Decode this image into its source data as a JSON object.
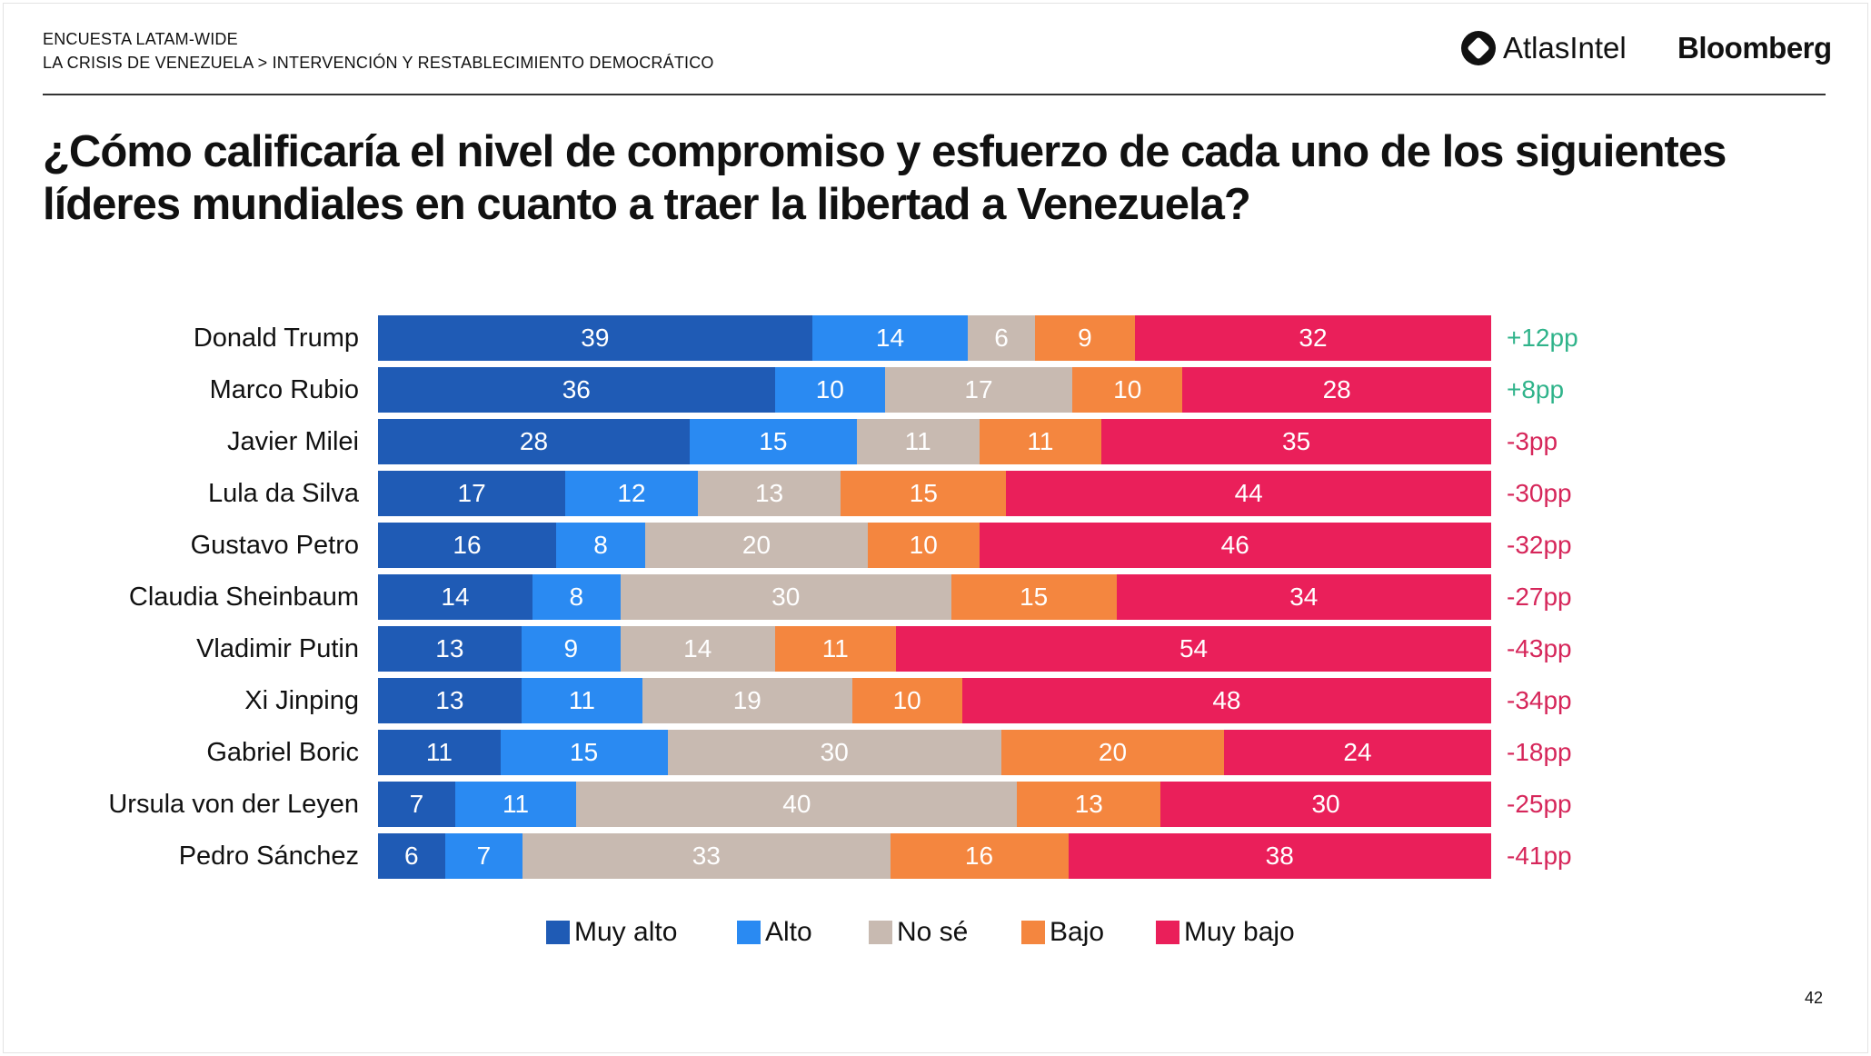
{
  "header": {
    "survey": "ENCUESTA LATAM-WIDE",
    "breadcrumb": "LA CRISIS DE VENEZUELA > INTERVENCIÓN Y RESTABLECIMIENTO DEMOCRÁTICO",
    "logos": [
      "AtlasIntel",
      "Bloomberg"
    ]
  },
  "page_number": "42",
  "chart_data": {
    "type": "bar",
    "orientation": "horizontal-stacked-100",
    "title": "¿Cómo calificaría el nivel de compromiso y esfuerzo de cada uno de los siguientes líderes mundiales en cuanto a traer la libertad a Venezuela?",
    "categories": [
      "Donald Trump",
      "Marco Rubio",
      "Javier Milei",
      "Lula da Silva",
      "Gustavo Petro",
      "Claudia Sheinbaum",
      "Vladimir Putin",
      "Xi Jinping",
      "Gabriel Boric",
      "Ursula von der Leyen",
      "Pedro Sánchez"
    ],
    "series": [
      {
        "name": "Muy alto",
        "color": "#1f5bb5",
        "values": [
          39,
          36,
          28,
          17,
          16,
          14,
          13,
          13,
          11,
          7,
          6
        ]
      },
      {
        "name": "Alto",
        "color": "#2a8af2",
        "values": [
          14,
          10,
          15,
          12,
          8,
          8,
          9,
          11,
          15,
          11,
          7
        ]
      },
      {
        "name": "No sé",
        "color": "#c8bab1",
        "values": [
          6,
          17,
          11,
          13,
          20,
          30,
          14,
          19,
          30,
          40,
          33
        ]
      },
      {
        "name": "Bajo",
        "color": "#f4863f",
        "values": [
          9,
          10,
          11,
          15,
          10,
          15,
          11,
          10,
          20,
          13,
          16
        ]
      },
      {
        "name": "Muy bajo",
        "color": "#ea1f5a",
        "values": [
          32,
          28,
          35,
          44,
          46,
          34,
          54,
          48,
          24,
          30,
          38
        ]
      }
    ],
    "net": [
      "+12pp",
      "+8pp",
      "-3pp",
      "-30pp",
      "-32pp",
      "-27pp",
      "-43pp",
      "-34pp",
      "-18pp",
      "-25pp",
      "-41pp"
    ],
    "net_colors": {
      "positive": "#2fb38a",
      "negative": "#d6265a"
    },
    "legend_position": "bottom"
  }
}
